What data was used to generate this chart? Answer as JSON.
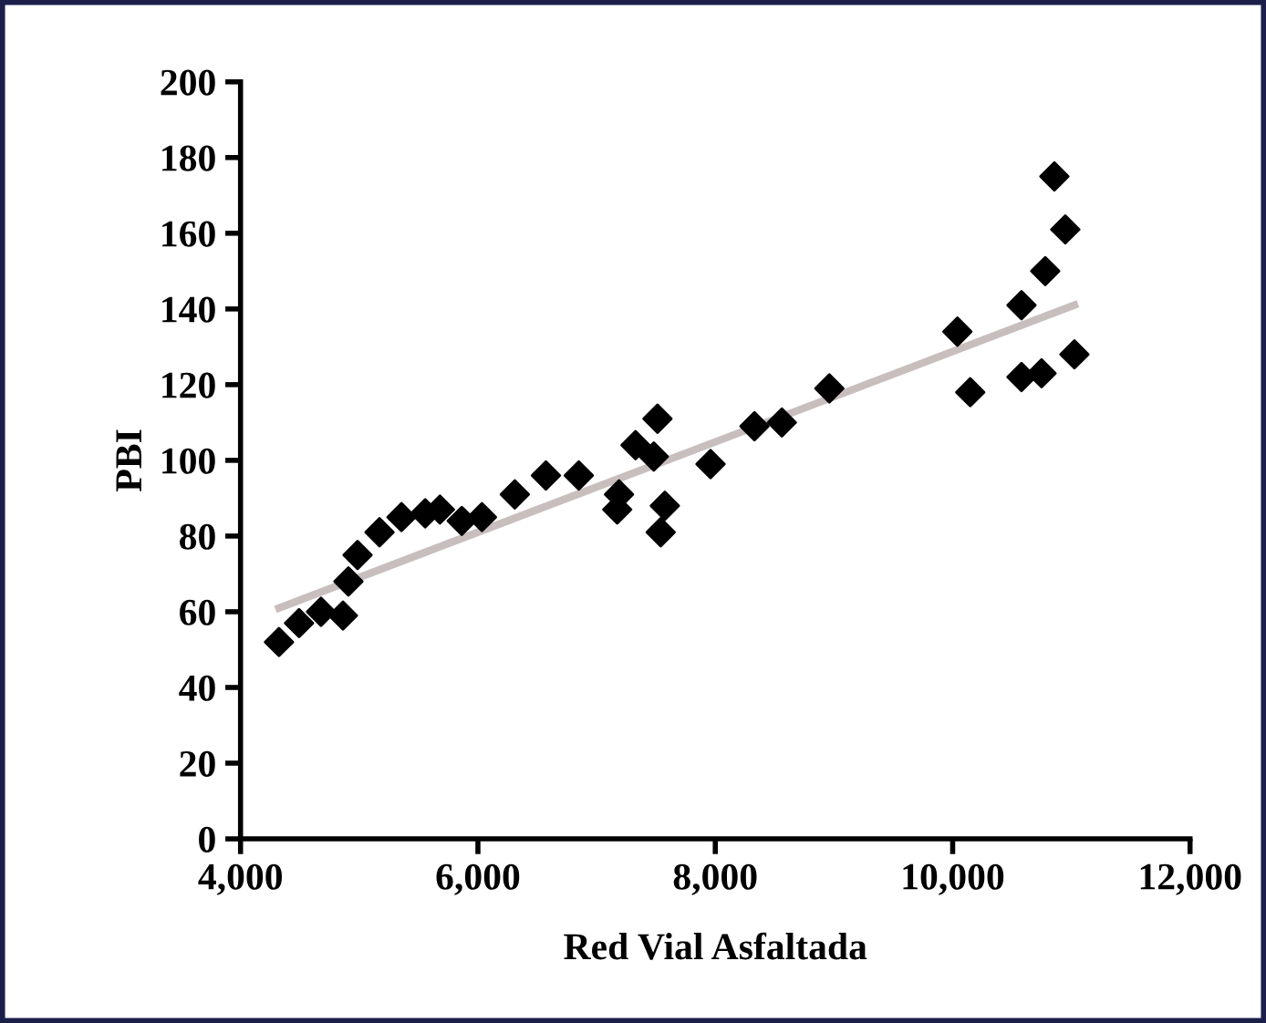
{
  "chart_data": {
    "type": "scatter",
    "xlabel": "Red Vial Asfaltada",
    "ylabel": "PBI",
    "xlim": [
      4000,
      12000
    ],
    "ylim": [
      0,
      200
    ],
    "xticks": [
      {
        "value": 4000,
        "label": "4,000"
      },
      {
        "value": 6000,
        "label": "6,000"
      },
      {
        "value": 8000,
        "label": "8,000"
      },
      {
        "value": 10000,
        "label": "10,000"
      },
      {
        "value": 12000,
        "label": "12,000"
      }
    ],
    "yticks": [
      0,
      20,
      40,
      60,
      80,
      100,
      120,
      140,
      160,
      180,
      200
    ],
    "grid": false,
    "legend": false,
    "series": [
      {
        "color": "#000000",
        "marker": "diamond",
        "x": [
          4324,
          4493,
          4678,
          4863,
          4909,
          4986,
          5171,
          5356,
          5556,
          5680,
          5864,
          6034,
          6311,
          6573,
          6850,
          7174,
          7189,
          7328,
          7482,
          7513,
          7575,
          7540,
          7960,
          8330,
          8561,
          8961,
          10040,
          10148,
          10580,
          10749,
          10580,
          10780,
          10857,
          10949,
          11026
        ],
        "values": [
          52,
          57,
          60,
          59,
          68,
          75,
          81,
          85,
          86,
          87,
          84,
          85,
          91,
          96,
          96,
          87,
          91,
          104,
          101,
          111,
          88,
          81,
          99,
          109,
          110,
          119,
          134,
          118,
          122,
          123,
          141,
          150,
          175,
          161,
          128
        ]
      },
      {
        "type": "line",
        "color": "#c8bebe",
        "marker": "none",
        "line_style": "solid",
        "x": [
          4324,
          11026
        ],
        "values": [
          61,
          141
        ]
      }
    ]
  }
}
